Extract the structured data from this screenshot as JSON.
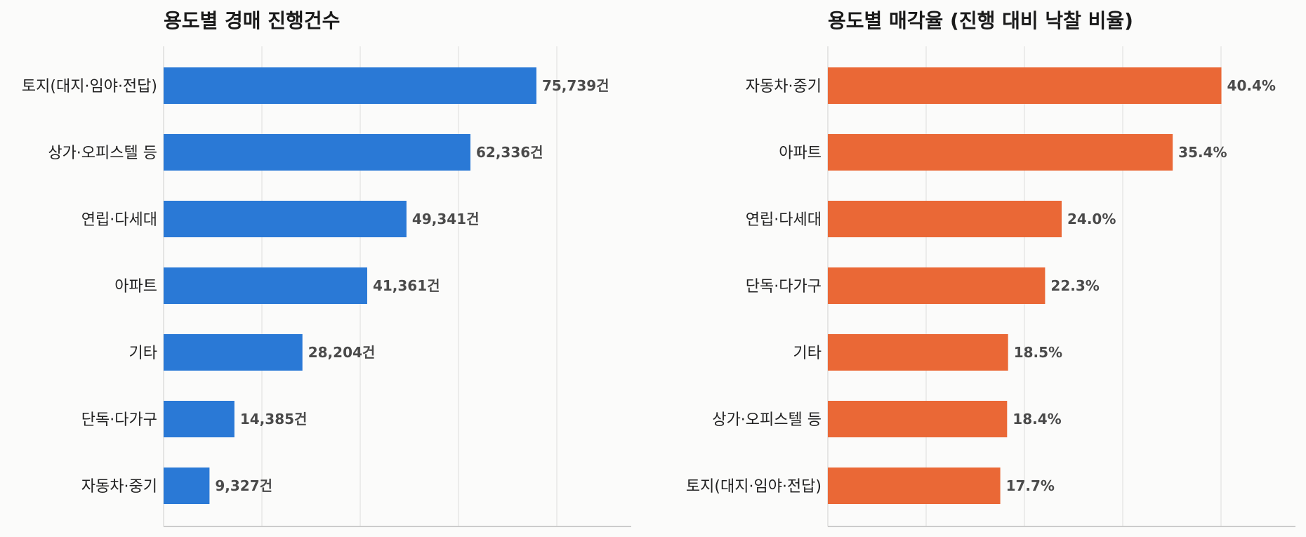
{
  "chart_data": [
    {
      "type": "bar",
      "orientation": "horizontal",
      "title": "용도별 경매 진행건수",
      "categories": [
        "토지(대지·임야·전답)",
        "상가·오피스텔 등",
        "연립·다세대",
        "아파트",
        "기타",
        "단독·다가구",
        "자동차·중기"
      ],
      "values": [
        75739,
        62336,
        49341,
        41361,
        28204,
        14385,
        9327
      ],
      "data_labels": [
        "75,739건",
        "62,336건",
        "49,341건",
        "41,361건",
        "28,204건",
        "14,385건",
        "9,327건"
      ],
      "xlim": [
        0,
        95000
      ],
      "grid": true,
      "color": "#2a79d6"
    },
    {
      "type": "bar",
      "orientation": "horizontal",
      "title": "용도별 매각율 (진행 대비 낙찰 비율)",
      "categories": [
        "자동차·중기",
        "아파트",
        "연립·다세대",
        "단독·다가구",
        "기타",
        "상가·오피스텔 등",
        "토지(대지·임야·전답)"
      ],
      "values": [
        40.4,
        35.4,
        24.0,
        22.3,
        18.5,
        18.4,
        17.7
      ],
      "data_labels": [
        "40.4%",
        "35.4%",
        "24.0%",
        "22.3%",
        "18.5%",
        "18.4%",
        "17.7%"
      ],
      "xlim": [
        0,
        48
      ],
      "grid": true,
      "color": "#ea6836"
    }
  ]
}
